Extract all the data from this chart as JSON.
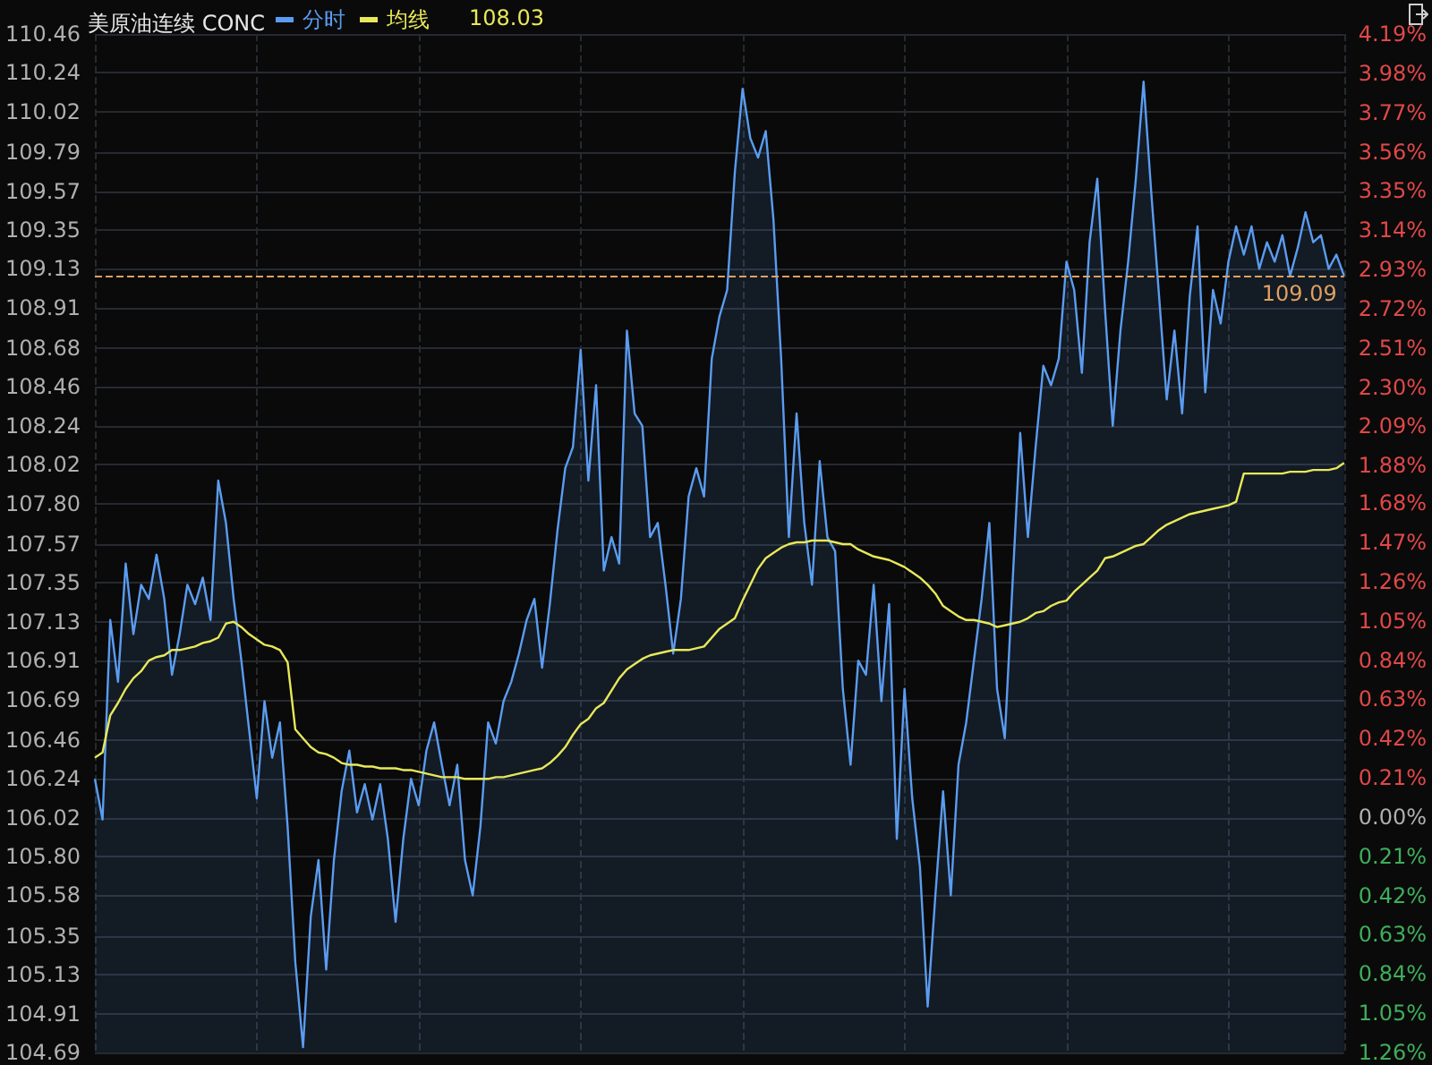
{
  "chart_data": {
    "type": "area",
    "title": "美原油连续 CONC",
    "categories": [
      null,
      null,
      null,
      null,
      null,
      null,
      null,
      null,
      null,
      null,
      null,
      null,
      null,
      null,
      null,
      null,
      null,
      null,
      null,
      null,
      null,
      null,
      null,
      null,
      null,
      null,
      null,
      null,
      null,
      null,
      null,
      null,
      null,
      null,
      null,
      null,
      null,
      null,
      null,
      null,
      null,
      null,
      null,
      null,
      null,
      null,
      null,
      null,
      null,
      null,
      null,
      null,
      null,
      null,
      null,
      null,
      null,
      null,
      null,
      null,
      null,
      null,
      null,
      null,
      null,
      null,
      null,
      null,
      null,
      null,
      null,
      null,
      null,
      null,
      null,
      null,
      null,
      null,
      null,
      null,
      null,
      null,
      null,
      null,
      null,
      null,
      null,
      null,
      null,
      null,
      null,
      null,
      null,
      null,
      null,
      null,
      null,
      null,
      null,
      null,
      null,
      null,
      null,
      null,
      null,
      null,
      null,
      null,
      null,
      null,
      null,
      null,
      null,
      null,
      null,
      null,
      null,
      null,
      null,
      null,
      null,
      null,
      null,
      null,
      null,
      null,
      null,
      null,
      null,
      null,
      null,
      null,
      null,
      null,
      null,
      null,
      null,
      null,
      null,
      null,
      null,
      null,
      null,
      null,
      null,
      null,
      null,
      null,
      null,
      null,
      null,
      null,
      null,
      null,
      null,
      null,
      null,
      null,
      null,
      null,
      null,
      null,
      null
    ],
    "series": [
      {
        "name": "分时",
        "type": "area",
        "color": "#5b9cf0",
        "values": [
          106.24,
          106.01,
          107.14,
          106.79,
          107.46,
          107.06,
          107.34,
          107.26,
          107.51,
          107.26,
          106.83,
          107.06,
          107.34,
          107.23,
          107.38,
          107.14,
          107.93,
          107.69,
          107.26,
          106.91,
          106.52,
          106.13,
          106.68,
          106.36,
          106.56,
          105.97,
          105.2,
          104.72,
          105.46,
          105.78,
          105.16,
          105.78,
          106.17,
          106.4,
          106.05,
          106.21,
          106.01,
          106.21,
          105.9,
          105.43,
          105.9,
          106.24,
          106.09,
          106.4,
          106.56,
          106.32,
          106.09,
          106.32,
          105.78,
          105.58,
          105.97,
          106.56,
          106.44,
          106.68,
          106.79,
          106.95,
          107.14,
          107.26,
          106.87,
          107.23,
          107.65,
          108.0,
          108.12,
          108.67,
          107.93,
          108.47,
          107.42,
          107.61,
          107.46,
          108.78,
          108.31,
          108.24,
          107.61,
          107.69,
          107.34,
          106.95,
          107.26,
          107.84,
          108.0,
          107.84,
          108.62,
          108.86,
          109.01,
          109.68,
          110.15,
          109.87,
          109.76,
          109.91,
          109.41,
          108.62,
          107.61,
          108.31,
          107.69,
          107.34,
          108.04,
          107.61,
          107.53,
          106.75,
          106.32,
          106.91,
          106.83,
          107.34,
          106.68,
          107.23,
          105.9,
          106.75,
          106.13,
          105.74,
          104.95,
          105.58,
          106.17,
          105.58,
          106.32,
          106.56,
          106.91,
          107.26,
          107.69,
          106.75,
          106.47,
          107.34,
          108.2,
          107.61,
          108.12,
          108.58,
          108.47,
          108.62,
          109.17,
          109.01,
          108.54,
          109.28,
          109.64,
          108.9,
          108.24,
          108.78,
          109.17,
          109.64,
          110.19,
          109.56,
          108.98,
          108.39,
          108.78,
          108.31,
          108.98,
          109.37,
          108.43,
          109.01,
          108.82,
          109.17,
          109.37,
          109.21,
          109.37,
          109.13,
          109.28,
          109.17,
          109.32,
          109.09,
          109.25,
          109.45,
          109.28,
          109.32,
          109.13,
          109.21,
          109.09
        ]
      },
      {
        "name": "均线",
        "type": "line",
        "color": "#e8e85a",
        "values": [
          106.36,
          106.39,
          106.6,
          106.67,
          106.75,
          106.81,
          106.85,
          106.91,
          106.93,
          106.94,
          106.97,
          106.97,
          106.98,
          106.99,
          107.01,
          107.02,
          107.04,
          107.12,
          107.13,
          107.1,
          107.06,
          107.03,
          107.0,
          106.99,
          106.97,
          106.9,
          106.52,
          106.47,
          106.42,
          106.39,
          106.38,
          106.36,
          106.33,
          106.32,
          106.32,
          106.31,
          106.31,
          106.3,
          106.3,
          106.3,
          106.29,
          106.29,
          106.28,
          106.27,
          106.26,
          106.25,
          106.25,
          106.25,
          106.24,
          106.24,
          106.24,
          106.24,
          106.25,
          106.25,
          106.26,
          106.27,
          106.28,
          106.29,
          106.3,
          106.33,
          106.37,
          106.42,
          106.49,
          106.55,
          106.58,
          106.64,
          106.67,
          106.74,
          106.81,
          106.86,
          106.89,
          106.92,
          106.94,
          106.95,
          106.96,
          106.97,
          106.97,
          106.97,
          106.98,
          106.99,
          107.04,
          107.09,
          107.12,
          107.15,
          107.25,
          107.34,
          107.43,
          107.49,
          107.52,
          107.55,
          107.57,
          107.58,
          107.58,
          107.59,
          107.59,
          107.59,
          107.58,
          107.57,
          107.57,
          107.54,
          107.52,
          107.5,
          107.49,
          107.48,
          107.46,
          107.44,
          107.41,
          107.38,
          107.34,
          107.29,
          107.22,
          107.19,
          107.16,
          107.14,
          107.14,
          107.13,
          107.12,
          107.1,
          107.11,
          107.12,
          107.13,
          107.15,
          107.18,
          107.19,
          107.22,
          107.24,
          107.25,
          107.3,
          107.34,
          107.38,
          107.42,
          107.49,
          107.5,
          107.52,
          107.54,
          107.56,
          107.57,
          107.61,
          107.65,
          107.68,
          107.7,
          107.72,
          107.74,
          107.75,
          107.76,
          107.77,
          107.78,
          107.79,
          107.81,
          107.97,
          107.97,
          107.97,
          107.97,
          107.97,
          107.97,
          107.98,
          107.98,
          107.98,
          107.99,
          107.99,
          107.99,
          108.0,
          108.03
        ]
      }
    ],
    "annotations": [
      "108.03"
    ],
    "ylim": [
      104.69,
      110.46
    ],
    "yticks": [
      104.69,
      104.91,
      105.13,
      105.35,
      105.58,
      {
        "value": 105.8,
        "label": "105.80"
      },
      106.02,
      106.24,
      106.46,
      106.69,
      106.91,
      107.13,
      107.35,
      107.57,
      {
        "value": 107.8,
        "label": "107.80"
      },
      108.02,
      108.24,
      108.46,
      108.68,
      108.91,
      109.13,
      109.35,
      109.57,
      109.79,
      110.02,
      110.24,
      110.46
    ],
    "y2lim": [
      -1.26,
      4.19
    ],
    "y2ticks": [
      {
        "value": -1.26,
        "label": "1.26%"
      },
      {
        "value": -1.05,
        "label": "1.05%"
      },
      {
        "value": -0.84,
        "label": "0.84%"
      },
      {
        "value": -0.63,
        "label": "0.63%"
      },
      {
        "value": -0.42,
        "label": "0.42%"
      },
      {
        "value": -0.21,
        "label": "0.21%"
      },
      {
        "value": 0,
        "label": "0.00%"
      },
      {
        "value": 0.21,
        "label": "0.21%"
      },
      {
        "value": 0.42,
        "label": "0.42%"
      },
      {
        "value": 0.63,
        "label": "0.63%"
      },
      {
        "value": 0.84,
        "label": "0.84%"
      },
      {
        "value": 1.05,
        "label": "1.05%"
      },
      {
        "value": 1.26,
        "label": "1.26%"
      },
      {
        "value": 1.47,
        "label": "1.47%"
      },
      {
        "value": 1.68,
        "label": "1.68%"
      },
      {
        "value": 1.88,
        "label": "1.88%"
      },
      {
        "value": 2.09,
        "label": "2.09%"
      },
      {
        "value": 2.3,
        "label": "2.30%"
      },
      {
        "value": 2.51,
        "label": "2.51%"
      },
      {
        "value": 2.72,
        "label": "2.72%"
      },
      {
        "value": 2.93,
        "label": "2.93%"
      },
      {
        "value": 3.14,
        "label": "3.14%"
      },
      {
        "value": 3.35,
        "label": "3.35%"
      },
      {
        "value": 3.56,
        "label": "3.56%"
      },
      {
        "value": 3.77,
        "label": "3.77%"
      },
      {
        "value": 3.98,
        "label": "3.98%"
      },
      {
        "value": 4.19,
        "label": "4.19%"
      }
    ],
    "ref_lines": [
      {
        "axis": "y",
        "value": 109.09,
        "label": "109.09",
        "color": "#e0a060",
        "line_style": "dashed"
      }
    ],
    "grid": true,
    "legend": "top left",
    "line_style": "solid",
    "tick_labels": "y"
  }
}
